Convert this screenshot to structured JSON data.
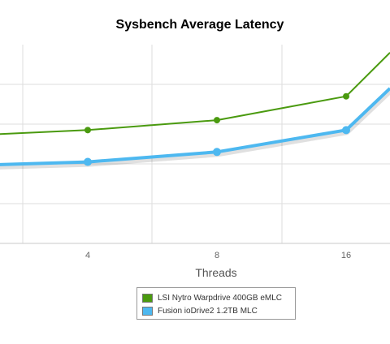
{
  "chart_data": {
    "type": "line",
    "title": "Sysbench Average Latency",
    "xlabel": "Threads",
    "ylabel": "",
    "categories": [
      "",
      "4",
      "8",
      "16",
      ""
    ],
    "grid": true,
    "legend_position": "bottom-center",
    "series": [
      {
        "name": "LSI Nytro Warpdrive 400GB eMLC",
        "color": "#4a9a0f",
        "values": [
          2.7,
          2.85,
          3.1,
          3.7,
          4.8
        ]
      },
      {
        "name": "Fusion ioDrive2 1.2TB MLC",
        "color": "#4db8f0",
        "values": [
          1.95,
          2.05,
          2.3,
          2.85,
          3.9
        ]
      }
    ],
    "ylim": [
      0,
      5
    ]
  }
}
